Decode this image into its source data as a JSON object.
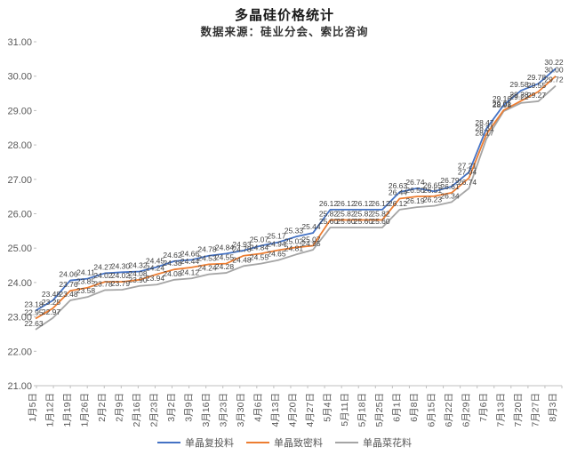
{
  "header": {
    "title": "多晶硅价格统计",
    "subtitle": "数据来源：硅业分会、索比咨询"
  },
  "colors": {
    "series_futoulia": "#4472C4",
    "series_zhimiliao": "#ED7D31",
    "series_caihualiao": "#A5A5A5",
    "axis_line": "#bfbfbf",
    "tick_label": "#595959",
    "data_label": "#404040",
    "background": "#ffffff"
  },
  "chart_data": {
    "type": "line",
    "title": "多晶硅价格统计",
    "subtitle": "数据来源：硅业分会、索比咨询",
    "xlabel": "",
    "ylabel": "",
    "ylim": [
      21.0,
      31.0
    ],
    "y_tick_step": 1.0,
    "y_ticks": [
      "31.00",
      "30.00",
      "29.00",
      "28.00",
      "27.00",
      "26.00",
      "25.00",
      "24.00",
      "23.00",
      "22.00",
      "21.00"
    ],
    "grid": false,
    "legend_position": "bottom",
    "data_labels": true,
    "categories": [
      "1月5日",
      "1月12日",
      "1月19日",
      "1月26日",
      "2月2日",
      "2月9日",
      "2月16日",
      "2月23日",
      "3月2日",
      "3月9日",
      "3月16日",
      "3月23日",
      "3月30日",
      "4月6日",
      "4月13日",
      "4月20日",
      "4月27日",
      "5月4日",
      "5月11日",
      "5月18日",
      "5月25日",
      "6月1日",
      "6月8日",
      "6月15日",
      "6月22日",
      "6月29日",
      "7月6日",
      "7月13日",
      "7月20日",
      "7月27日",
      "8月3日"
    ],
    "series": [
      {
        "name": "单晶复投料",
        "color": "#4472C4",
        "values": [
          23.18,
          23.48,
          24.06,
          24.11,
          24.27,
          24.3,
          24.32,
          24.45,
          24.62,
          24.66,
          24.78,
          24.84,
          24.93,
          25.07,
          25.17,
          25.33,
          25.44,
          26.12,
          26.12,
          26.12,
          26.12,
          26.63,
          26.74,
          26.65,
          26.79,
          27.21,
          28.47,
          29.16,
          29.58,
          29.78,
          30.22
        ]
      },
      {
        "name": "单晶致密料",
        "color": "#ED7D31",
        "values": [
          22.95,
          23.25,
          23.76,
          23.85,
          24.02,
          24.02,
          24.08,
          24.24,
          24.38,
          24.44,
          24.53,
          24.55,
          24.78,
          24.84,
          24.94,
          25.02,
          25.07,
          25.82,
          25.82,
          25.82,
          25.82,
          26.44,
          26.5,
          26.51,
          26.61,
          27.04,
          28.31,
          29.01,
          29.28,
          29.55,
          30.0
        ]
      },
      {
        "name": "单晶菜花料",
        "color": "#A5A5A5",
        "values": [
          22.63,
          22.97,
          23.48,
          23.58,
          23.78,
          23.79,
          23.9,
          23.94,
          24.08,
          24.12,
          24.24,
          24.28,
          24.48,
          24.55,
          24.65,
          24.81,
          24.95,
          25.6,
          25.6,
          25.6,
          25.6,
          26.12,
          26.19,
          26.23,
          26.34,
          26.74,
          28.17,
          28.98,
          29.22,
          29.27,
          29.72
        ]
      }
    ]
  },
  "legend": {
    "items": [
      {
        "label": "单晶复投料",
        "color": "#4472C4"
      },
      {
        "label": "单晶致密料",
        "color": "#ED7D31"
      },
      {
        "label": "单晶菜花料",
        "color": "#A5A5A5"
      }
    ]
  }
}
